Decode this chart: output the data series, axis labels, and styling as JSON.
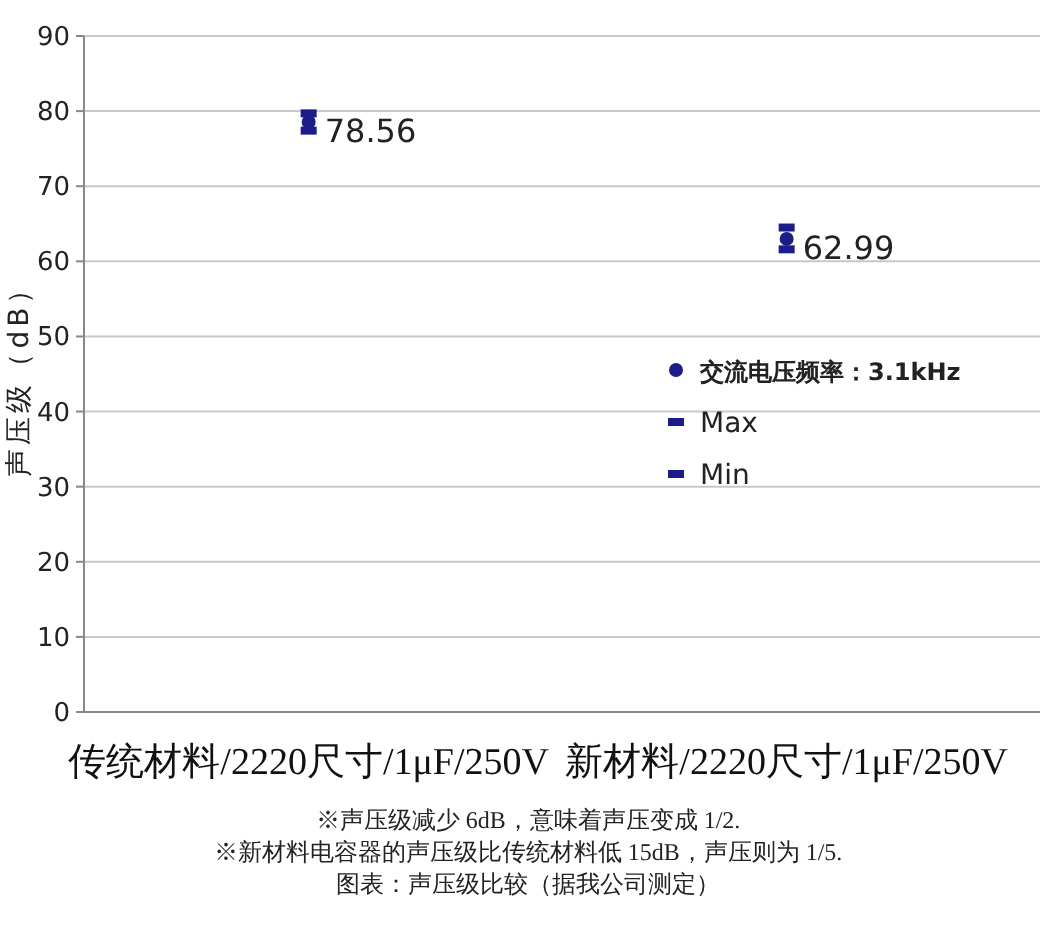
{
  "chart_data": {
    "type": "scatter",
    "ylabel": "声压级（dB）",
    "categories": [
      "传统材料/2220尺寸/1μF/250V",
      "新材料/2220尺寸/1μF/250V"
    ],
    "ylim": [
      0,
      90
    ],
    "yticks": [
      0,
      10,
      20,
      30,
      40,
      50,
      60,
      70,
      80,
      90
    ],
    "grid": "y",
    "legend": "right",
    "series": [
      {
        "name": "交流电压频率：3.1kHz",
        "color": "#1c1c8a",
        "marker": "circle",
        "values": [
          78.56,
          62.99
        ],
        "value_labels": [
          "78.56",
          "62.99"
        ]
      },
      {
        "name": "Max",
        "color": "#1c1c8a",
        "marker": "square",
        "values": [
          79.7,
          64.5
        ]
      },
      {
        "name": "Min",
        "color": "#1c1c8a",
        "marker": "square",
        "values": [
          77.4,
          61.6
        ]
      }
    ],
    "annotations": [
      "※声压级减少 6dB，意味着声压变成 1/2.",
      "※新材料电容器的声压级比传统材料低 15dB，声压则为 1/5.",
      "图表：声压级比较（据我公司测定）"
    ]
  }
}
